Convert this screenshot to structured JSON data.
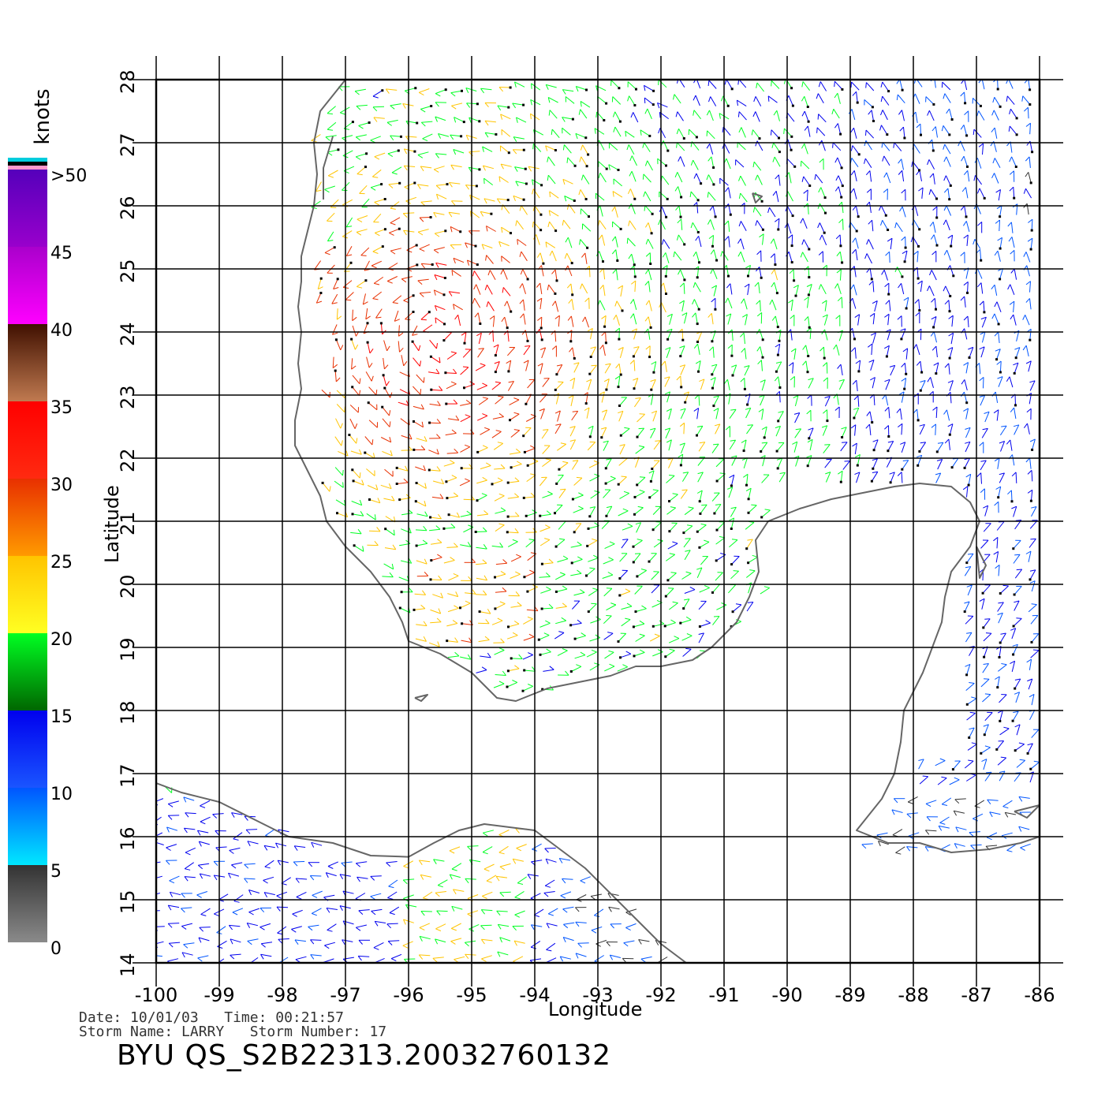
{
  "colorbar": {
    "units": "knots",
    "labels": [
      ">50",
      "45",
      "40",
      "35",
      "30",
      "25",
      "20",
      "15",
      "10",
      "5",
      "0"
    ],
    "segments": [
      {
        "from": 0,
        "to": 5,
        "top": "#333333",
        "bottom": "#8a8a8a"
      },
      {
        "from": 5,
        "to": 10,
        "top": "#0055ff",
        "bottom": "#00e8ff"
      },
      {
        "from": 10,
        "to": 15,
        "top": "#0000ee",
        "bottom": "#1a55ff"
      },
      {
        "from": 15,
        "to": 20,
        "top": "#00ff22",
        "bottom": "#006600"
      },
      {
        "from": 20,
        "to": 25,
        "top": "#ffc400",
        "bottom": "#ffff22"
      },
      {
        "from": 25,
        "to": 30,
        "top": "#e83000",
        "bottom": "#ff9a00"
      },
      {
        "from": 30,
        "to": 35,
        "top": "#ff0000",
        "bottom": "#ff2a10"
      },
      {
        "from": 35,
        "to": 40,
        "top": "#401000",
        "bottom": "#c07a50"
      },
      {
        "from": 40,
        "to": 45,
        "top": "#aa00cc",
        "bottom": "#ff00ff"
      },
      {
        "from": 45,
        "to": 50,
        "top": "#5500bb",
        "bottom": "#9900cc"
      }
    ],
    "extra_colors": [
      "#00ccdd",
      "#000000",
      "#ff99cc"
    ]
  },
  "map": {
    "lon_range": [
      -100,
      -86
    ],
    "lat_range": [
      14,
      28
    ],
    "lon_ticks": [
      "-100",
      "-99",
      "-98",
      "-97",
      "-96",
      "-95",
      "-94",
      "-93",
      "-92",
      "-91",
      "-90",
      "-89",
      "-88",
      "-87",
      "-86"
    ],
    "lat_ticks": [
      "14",
      "15",
      "16",
      "17",
      "18",
      "19",
      "20",
      "21",
      "22",
      "23",
      "24",
      "25",
      "26",
      "27",
      "28"
    ],
    "xlabel": "Longitude",
    "ylabel": "Latitude",
    "grid": true,
    "coast_color": "#666666"
  },
  "meta": {
    "line1": "Date: 10/01/03   Time: 00:21:57",
    "line2": "Storm Name: LARRY   Storm Number: 17",
    "title": "BYU QS_S2B22313.20032760132"
  }
}
